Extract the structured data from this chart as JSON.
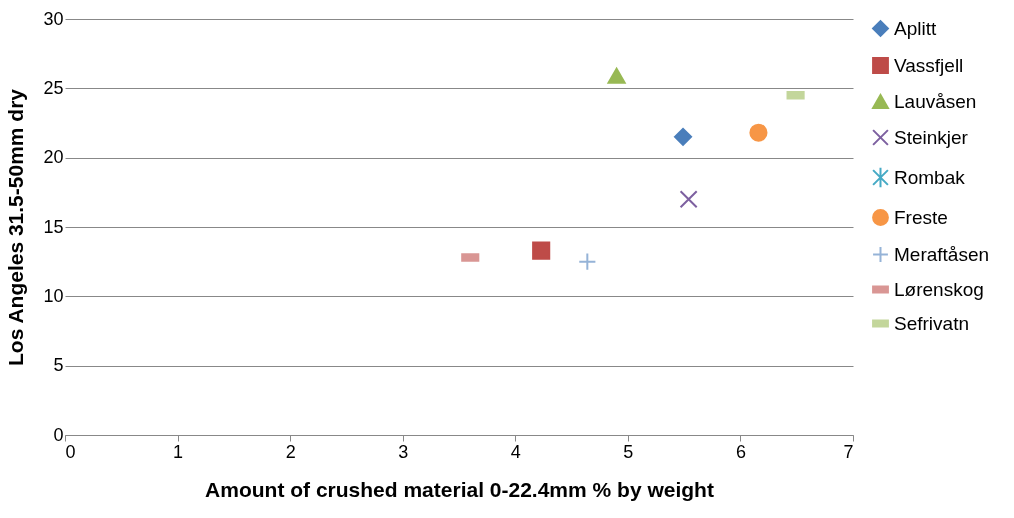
{
  "chart_data": {
    "type": "scatter",
    "xlabel": "Amount of crushed material 0-22.4mm % by weight",
    "ylabel": "Los Angeles 31.5-50mm dry",
    "xlim": [
      0,
      7
    ],
    "xticks": [
      0,
      1,
      2,
      3,
      4,
      5,
      6,
      7
    ],
    "ylim": [
      0,
      30
    ],
    "yticks": [
      0,
      5,
      10,
      15,
      20,
      25,
      30
    ],
    "grid": "y",
    "legend": "right",
    "series": [
      {
        "name": "Aplitt",
        "color": "#4a7ebb",
        "marker": "diamond",
        "x": [
          5.49
        ],
        "values": [
          21.5
        ]
      },
      {
        "name": "Vassfjell",
        "color": "#be4b48",
        "marker": "square",
        "x": [
          4.23
        ],
        "values": [
          13.3
        ]
      },
      {
        "name": "Lauvåsen",
        "color": "#98b954",
        "marker": "triangle",
        "x": [
          4.9
        ],
        "values": [
          25.9
        ]
      },
      {
        "name": "Steinkjer",
        "color": "#7d60a0",
        "marker": "x",
        "x": [
          5.54
        ],
        "values": [
          17.0
        ]
      },
      {
        "name": "Rombak",
        "color": "#46aac5",
        "marker": "star",
        "x": [
          null
        ],
        "values": [
          null
        ]
      },
      {
        "name": "Freste",
        "color": "#f79646",
        "marker": "circle",
        "x": [
          6.16
        ],
        "values": [
          21.8
        ]
      },
      {
        "name": "Meraftåsen",
        "color": "#95b3d7",
        "marker": "plus",
        "x": [
          4.64
        ],
        "values": [
          12.5
        ]
      },
      {
        "name": "Lørenskog",
        "color": "#d99694",
        "x": [
          3.6
        ],
        "values": [
          12.8
        ]
      },
      {
        "name": "Sefrivatn",
        "color": "#c3d69b",
        "x": [
          6.49
        ],
        "values": [
          24.5
        ]
      }
    ]
  }
}
